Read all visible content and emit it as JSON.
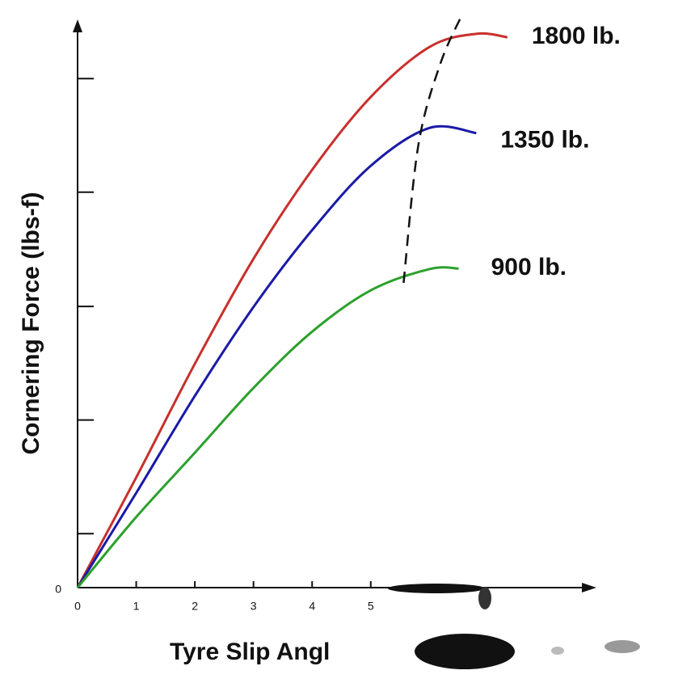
{
  "chart_data": {
    "type": "line",
    "y_label": "Cornering Force (lbs-f)",
    "x_label": "Tyre Slip Angl",
    "xlim": [
      0,
      9
    ],
    "ylim": [
      0,
      10
    ],
    "xticks": [
      0,
      1,
      2,
      3,
      4,
      5
    ],
    "yticks": [
      0
    ],
    "y_minor_ticks": [
      0.94,
      2.92,
      4.9,
      6.89,
      8.87
    ],
    "series": [
      {
        "name": "1800 lb.",
        "color": "#c8302c",
        "x": [
          0,
          1,
          2,
          3,
          4,
          5,
          6,
          6.8,
          7.33
        ],
        "values": [
          0,
          1.92,
          3.9,
          5.73,
          7.28,
          8.55,
          9.42,
          9.65,
          9.59
        ]
      },
      {
        "name": "1350 lb.",
        "color": "#1a1aa8",
        "x": [
          0,
          1,
          2,
          3,
          4,
          5,
          6,
          6.8
        ],
        "values": [
          0,
          1.65,
          3.34,
          4.89,
          6.23,
          7.35,
          8.01,
          7.92
        ]
      },
      {
        "name": "900 lb.",
        "color": "#2ca02c",
        "x": [
          0,
          1,
          2,
          3,
          4,
          5,
          6,
          6.5
        ],
        "values": [
          0,
          1.23,
          2.35,
          3.48,
          4.46,
          5.18,
          5.55,
          5.56
        ]
      }
    ],
    "peak_line": {
      "x": [
        5.56,
        5.81,
        6.18,
        6.56
      ],
      "values": [
        5.31,
        7.7,
        9.11,
        9.99
      ],
      "color": "#111111",
      "dashed": true
    }
  }
}
